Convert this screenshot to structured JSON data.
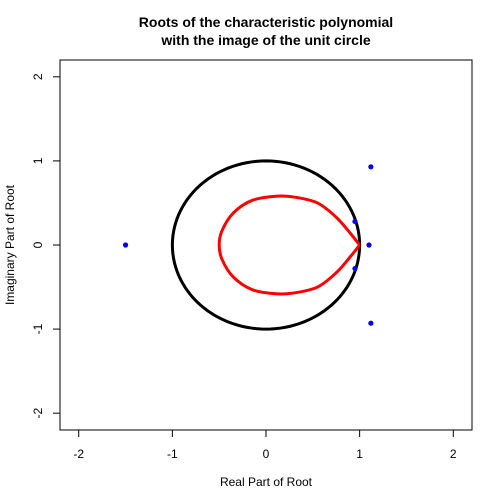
{
  "chart_data": {
    "type": "scatter",
    "title": [
      "Roots of the characteristic polynomial",
      "with the image of the unit circle"
    ],
    "xlabel": "Real Part of Root",
    "ylabel": "Imaginary Part of Root",
    "xlim": [
      -2.2,
      2.2
    ],
    "ylim": [
      -2.2,
      2.2
    ],
    "xticks": [
      -2,
      -1,
      0,
      1,
      2
    ],
    "yticks": [
      -2,
      -1,
      0,
      1,
      2
    ],
    "grid": false,
    "colors": {
      "roots": "#0000ff",
      "unit_circle": "#000000",
      "image_curve": "#ff0000"
    },
    "roots": {
      "name": "",
      "x": [
        -1.5,
        1.12,
        0.95,
        1.1,
        0.95,
        1.12
      ],
      "y": [
        0.0,
        0.93,
        0.28,
        0.0,
        -0.28,
        -0.93
      ]
    },
    "unit_circle": {
      "center": [
        0,
        0
      ],
      "radius": 1
    },
    "image_curve": {
      "x": [
        1.0,
        0.9,
        0.75,
        0.55,
        0.3,
        0.1,
        -0.15,
        -0.35,
        -0.47,
        -0.5,
        -0.47,
        -0.35,
        -0.15,
        0.1,
        0.3,
        0.55,
        0.75,
        0.9,
        1.0
      ],
      "y": [
        0.0,
        0.14,
        0.33,
        0.5,
        0.57,
        0.58,
        0.53,
        0.38,
        0.17,
        0.0,
        -0.17,
        -0.38,
        -0.53,
        -0.58,
        -0.57,
        -0.5,
        -0.33,
        -0.14,
        0.0
      ]
    }
  }
}
